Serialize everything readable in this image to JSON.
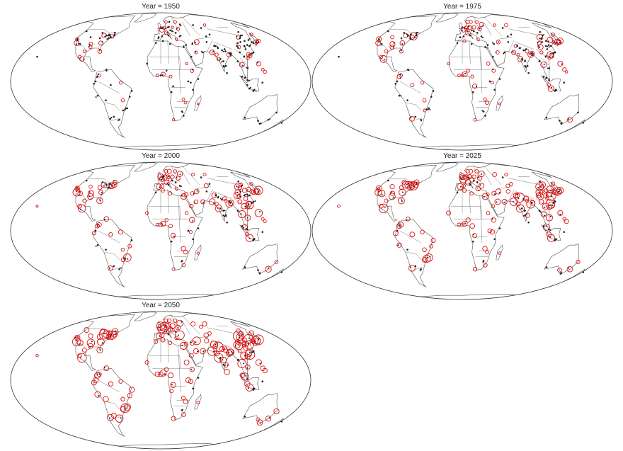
{
  "colors": {
    "background": "#ffffff",
    "outline": "#333333",
    "borders": "#555555",
    "dot_low": "#222222",
    "dot_high": "#dd1111"
  },
  "panels": [
    {
      "title": "Year = 1950",
      "year": 1950,
      "red_share": 0.25,
      "size_scale": 0.8
    },
    {
      "title": "Year = 1975",
      "year": 1975,
      "red_share": 0.45,
      "size_scale": 1.0
    },
    {
      "title": "Year = 2000",
      "year": 2000,
      "red_share": 0.65,
      "size_scale": 1.25
    },
    {
      "title": "Year = 2025",
      "year": 2025,
      "red_share": 0.8,
      "size_scale": 1.45
    },
    {
      "title": "Year = 2050",
      "year": 2050,
      "red_share": 0.9,
      "size_scale": 1.65
    }
  ]
}
